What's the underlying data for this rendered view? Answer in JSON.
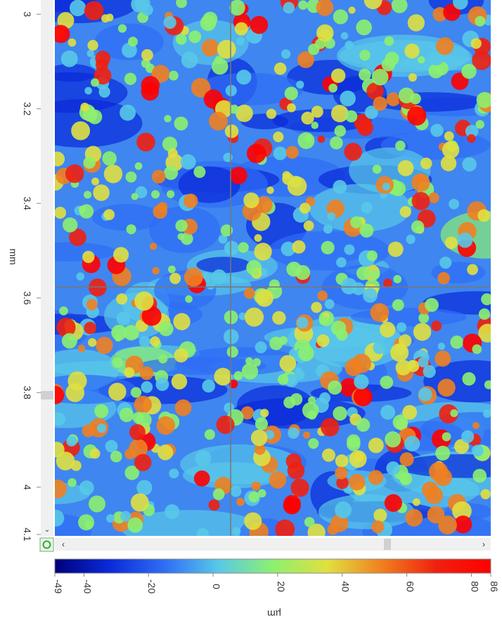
{
  "y_axis": {
    "label": "mm",
    "range": [
      2.97,
      4.1
    ],
    "ticks": [
      3.0,
      3.2,
      3.4,
      3.6,
      3.8,
      4.0,
      4.1
    ]
  },
  "colorbar": {
    "unit": "µm",
    "range": [
      -49,
      86
    ],
    "ticks": [
      -49,
      -40,
      -20,
      0,
      20,
      40,
      60,
      80,
      86
    ],
    "colors": [
      "#00007a",
      "#0a2ad8",
      "#2f6cf5",
      "#58c8e8",
      "#8cf070",
      "#e0e040",
      "#f08020",
      "#f02010",
      "#ff0000"
    ]
  }
}
